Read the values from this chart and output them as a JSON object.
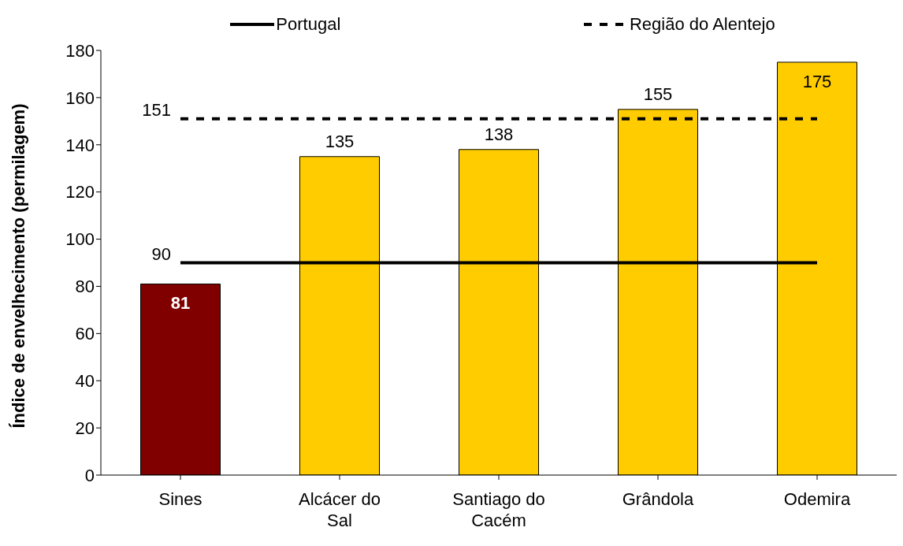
{
  "chart_data": {
    "type": "bar",
    "ylabel": "Índice de envelhecimento (permilagem)",
    "categories": [
      "Sines",
      "Alcácer do Sal",
      "Santiago do Cacém",
      "Grândola",
      "Odemira"
    ],
    "series": [
      {
        "values": [
          81,
          135,
          138,
          155,
          175
        ],
        "colors": [
          "#800000",
          "#ffcc00",
          "#ffcc00",
          "#ffcc00",
          "#ffcc00"
        ],
        "value_labels": [
          "81",
          "135",
          "138",
          "155",
          "175"
        ]
      },
      {
        "type": "line",
        "name": "Portugal",
        "color": "#000000",
        "line_style": "solid",
        "values": [
          90,
          90,
          90,
          90,
          90
        ],
        "value_labels": [
          "90",
          null,
          null,
          null,
          null
        ]
      },
      {
        "type": "line",
        "name": "Região do Alentejo",
        "color": "#000000",
        "line_style": "dashed",
        "values": [
          151,
          151,
          151,
          151,
          151
        ],
        "value_labels": [
          "151",
          null,
          null,
          null,
          null
        ]
      }
    ],
    "ylim": [
      0,
      180
    ],
    "yticks": [
      0,
      20,
      40,
      60,
      80,
      100,
      120,
      140,
      160,
      180
    ],
    "grid": false,
    "legend": "top",
    "marker": "none"
  }
}
